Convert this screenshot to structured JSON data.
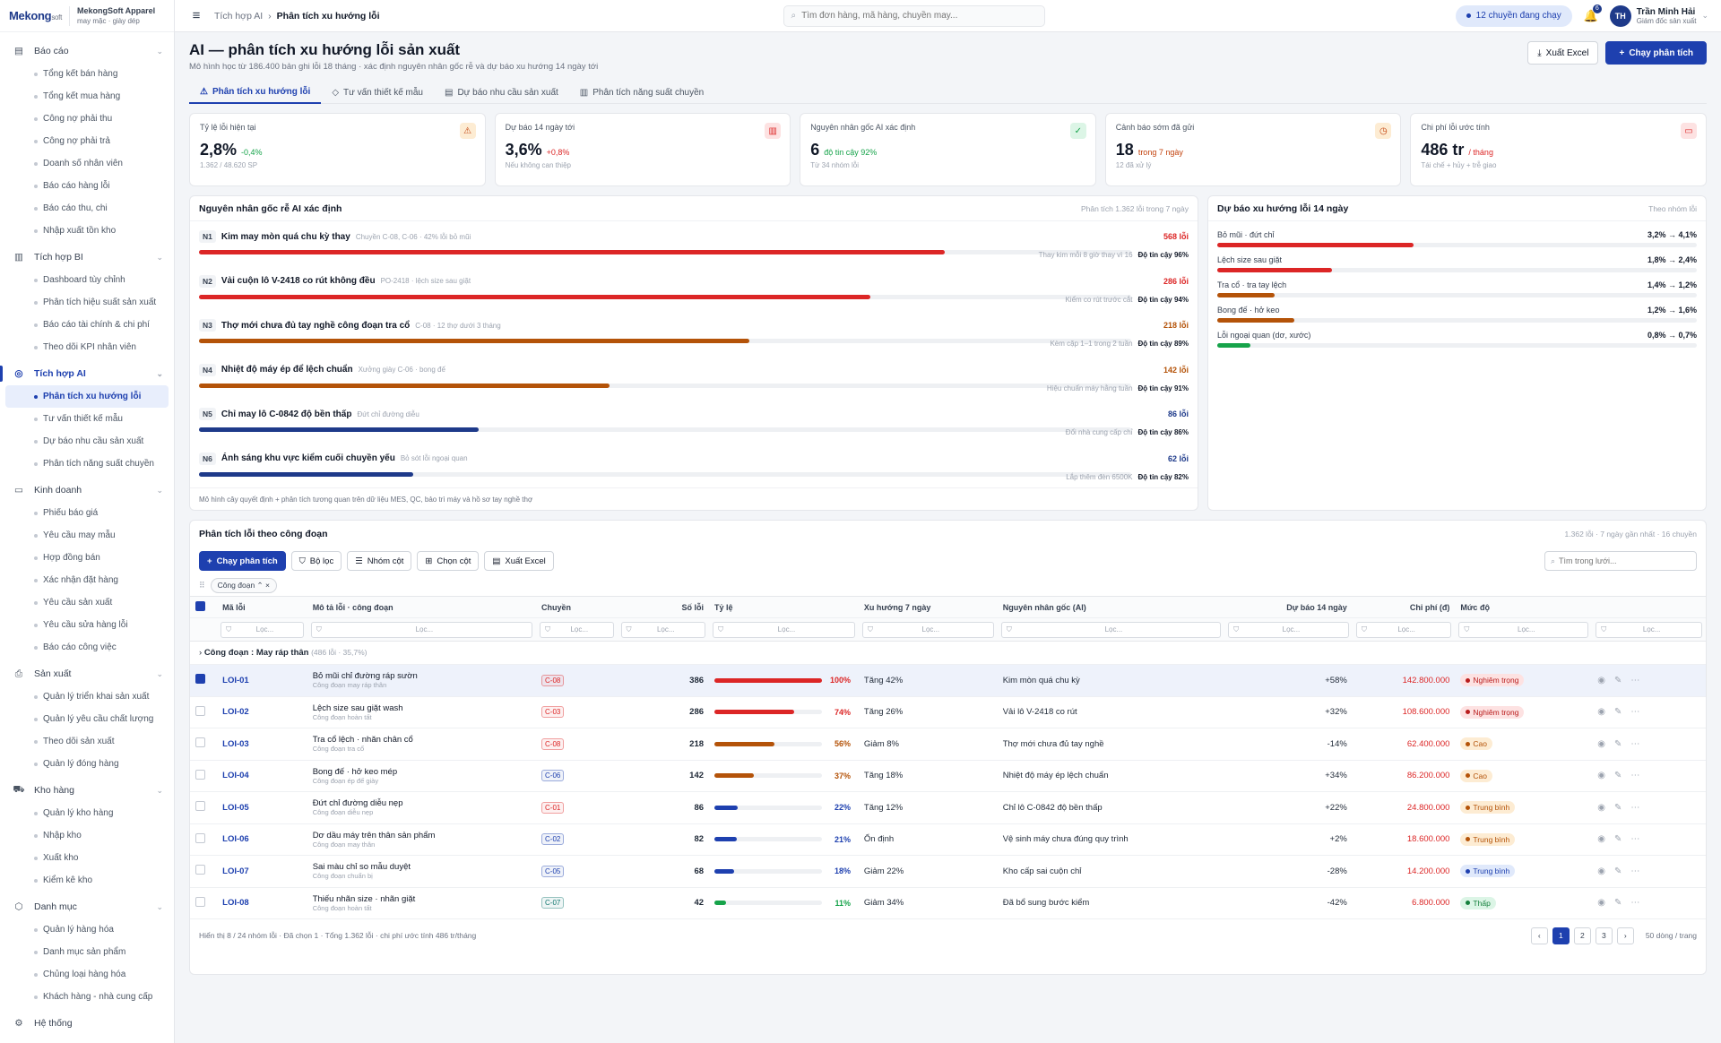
{
  "brand": {
    "logo": "Mekong",
    "logo_small": "soft",
    "name": "MekongSoft Apparel",
    "sub": "may mặc · giày dép"
  },
  "sidebar": [
    {
      "label": "Báo cáo",
      "icon": "report-icon",
      "items": [
        "Tổng kết bán hàng",
        "Tổng kết mua hàng",
        "Công nợ phải thu",
        "Công nợ phải trả",
        "Doanh số nhân viên",
        "Báo cáo hàng lỗi",
        "Báo cáo thu, chi",
        "Nhập xuất tồn kho"
      ]
    },
    {
      "label": "Tích hợp BI",
      "icon": "bi-chart-icon",
      "items": [
        "Dashboard tùy chỉnh",
        "Phân tích hiệu suất sản xuất",
        "Báo cáo tài chính & chi phí",
        "Theo dõi KPI nhân viên"
      ]
    },
    {
      "label": "Tích hợp AI",
      "icon": "ai-icon",
      "active": true,
      "items": [
        "Phân tích xu hướng lỗi",
        "Tư vấn thiết kế mẫu",
        "Dự báo nhu cầu sản xuất",
        "Phân tích năng suất chuyền"
      ],
      "active_item": 0
    },
    {
      "label": "Kinh doanh",
      "icon": "business-icon",
      "items": [
        "Phiếu báo giá",
        "Yêu cầu may mẫu",
        "Hợp đồng bán",
        "Xác nhận đặt hàng",
        "Yêu cầu sản xuất",
        "Yêu cầu sửa hàng lỗi",
        "Báo cáo công việc"
      ]
    },
    {
      "label": "Sản xuất",
      "icon": "production-icon",
      "items": [
        "Quản lý triển khai sản xuất",
        "Quản lý yêu cầu chất lượng",
        "Theo dõi sản xuất",
        "Quản lý đóng hàng"
      ]
    },
    {
      "label": "Kho hàng",
      "icon": "warehouse-icon",
      "items": [
        "Quản lý kho hàng",
        "Nhập kho",
        "Xuất kho",
        "Kiểm kê kho"
      ]
    },
    {
      "label": "Danh mục",
      "icon": "catalog-icon",
      "items": [
        "Quản lý hàng hóa",
        "Danh mục sản phẩm",
        "Chủng loại hàng hóa",
        "Khách hàng - nhà cung cấp"
      ]
    },
    {
      "label": "Hệ thống",
      "icon": "settings-icon",
      "items": []
    }
  ],
  "topbar": {
    "crumb1": "Tích hợp AI",
    "crumb2": "Phân tích xu hướng lỗi",
    "search_placeholder": "Tìm đơn hàng, mã hàng, chuyền may...",
    "running": "12 chuyền đang chạy",
    "notif": "6",
    "user_initials": "TH",
    "user_name": "Trần Minh Hải",
    "user_role": "Giám đốc sản xuất"
  },
  "page": {
    "title": "AI — phân tích xu hướng lỗi sản xuất",
    "subtitle": "Mô hình học từ 186.400 bản ghi lỗi 18 tháng · xác định nguyên nhân gốc rễ và dự báo xu hướng 14 ngày tới",
    "export": "Xuất Excel",
    "run": "Chạy phân tích"
  },
  "tabs": [
    "Phân tích xu hướng lỗi",
    "Tư vấn thiết kế mẫu",
    "Dự báo nhu cầu sản xuất",
    "Phân tích năng suất chuyền"
  ],
  "kpis": [
    {
      "label": "Tỷ lệ lỗi hiện tại",
      "value": "2,8%",
      "delta": "-0,4%",
      "delta_color": "#16a34a",
      "note": "1.362 / 48.620 SP",
      "icon": "warning-icon",
      "ic_bg": "#fdecd3",
      "ic_fg": "#c2410c"
    },
    {
      "label": "Dự báo 14 ngày tới",
      "value": "3,6%",
      "delta": "+0,8%",
      "delta_color": "#dc2626",
      "note": "Nếu không can thiệp",
      "icon": "bar-chart-icon",
      "ic_bg": "#fde2e2",
      "ic_fg": "#dc2626"
    },
    {
      "label": "Nguyên nhân gốc AI xác định",
      "value": "6",
      "delta": "độ tin cậy 92%",
      "delta_color": "#16a34a",
      "note": "Từ 34 nhóm lỗi",
      "icon": "check-circle-icon",
      "ic_bg": "#dcf5e6",
      "ic_fg": "#16a34a"
    },
    {
      "label": "Cảnh báo sớm đã gửi",
      "value": "18",
      "delta": "trong 7 ngày",
      "delta_color": "#c2410c",
      "note": "12 đã xử lý",
      "icon": "clock-icon",
      "ic_bg": "#fdecd3",
      "ic_fg": "#c2410c"
    },
    {
      "label": "Chi phí lỗi ước tính",
      "value": "486 tr",
      "delta": "/ tháng",
      "delta_color": "#dc2626",
      "note": "Tái chế + hủy + trễ giao",
      "icon": "money-icon",
      "ic_bg": "#fde2e2",
      "ic_fg": "#dc2626"
    }
  ],
  "causes": {
    "title": "Nguyên nhân gốc rễ AI xác định",
    "meta": "Phân tích 1.362 lỗi trong 7 ngày",
    "footer": "Mô hình cây quyết định + phân tích tương quan trên dữ liệu MES, QC, bảo trì máy và hồ sơ tay nghề thợ",
    "conf_label": "Độ tin cậy",
    "items": [
      {
        "id": "N1",
        "name": "Kim may mòn quá chu kỳ thay",
        "desc": "Chuyền C-08, C-06 · 42% lỗi bỏ mũi",
        "count": "568 lỗi",
        "pct": 0.8,
        "color": "#dc2626",
        "action": "Thay kim mỗi 8 giờ thay vì 16",
        "conf": "96%"
      },
      {
        "id": "N2",
        "name": "Vải cuộn lô V-2418 co rút không đều",
        "desc": "PO-2418 · lệch size sau giặt",
        "count": "286 lỗi",
        "pct": 0.72,
        "color": "#dc2626",
        "action": "Kiểm co rút trước cắt",
        "conf": "94%"
      },
      {
        "id": "N3",
        "name": "Thợ mới chưa đủ tay nghề công đoạn tra cổ",
        "desc": "C-08 · 12 thợ dưới 3 tháng",
        "count": "218 lỗi",
        "pct": 0.59,
        "color": "#b45309",
        "action": "Kèm cặp 1–1 trong 2 tuần",
        "conf": "89%"
      },
      {
        "id": "N4",
        "name": "Nhiệt độ máy ép để lệch chuẩn",
        "desc": "Xưởng giày C-06 · bong đế",
        "count": "142 lỗi",
        "pct": 0.44,
        "color": "#b45309",
        "action": "Hiệu chuẩn máy hằng tuần",
        "conf": "91%"
      },
      {
        "id": "N5",
        "name": "Chỉ may lô C-0842 độ bền thấp",
        "desc": "Đứt chỉ đường diễu",
        "count": "86 lỗi",
        "pct": 0.3,
        "color": "#1e3a8a",
        "action": "Đổi nhà cung cấp chỉ",
        "conf": "86%"
      },
      {
        "id": "N6",
        "name": "Ánh sáng khu vực kiểm cuối chuyền yếu",
        "desc": "Bỏ sót lỗi ngoại quan",
        "count": "62 lỗi",
        "pct": 0.23,
        "color": "#1e3a8a",
        "action": "Lắp thêm đèn 6500K",
        "conf": "82%"
      }
    ]
  },
  "forecast": {
    "title": "Dự báo xu hướng lỗi 14 ngày",
    "meta": "Theo nhóm lỗi",
    "items": [
      {
        "name": "Bỏ mũi · đứt chỉ",
        "range": "3,2% → 4,1%",
        "pct": 0.41,
        "color": "#dc2626"
      },
      {
        "name": "Lệch size sau giặt",
        "range": "1,8% → 2,4%",
        "pct": 0.24,
        "color": "#dc2626"
      },
      {
        "name": "Tra cổ · tra tay lệch",
        "range": "1,4% → 1,2%",
        "pct": 0.12,
        "color": "#b45309"
      },
      {
        "name": "Bong đế · hở keo",
        "range": "1,2% → 1,6%",
        "pct": 0.16,
        "color": "#b45309"
      },
      {
        "name": "Lỗi ngoại quan (dơ, xước)",
        "range": "0,8% → 0,7%",
        "pct": 0.07,
        "color": "#16a34a"
      }
    ]
  },
  "table": {
    "title": "Phân tích lỗi theo công đoạn",
    "meta": "1.362 lỗi · 7 ngày gần nhất · 16 chuyền",
    "tools": [
      "Chạy phân tích",
      "Bộ lọc",
      "Nhóm cột",
      "Chọn cột",
      "Xuất Excel"
    ],
    "search_placeholder": "Tìm trong lưới...",
    "group_chip": "Công đoạn",
    "filter_placeholder": "Lọc...",
    "columns": [
      "Mã lỗi",
      "Mô tả lỗi · công đoạn",
      "Chuyền",
      "Số lỗi",
      "Tỷ lệ",
      "Xu hướng 7 ngày",
      "Nguyên nhân gốc (AI)",
      "Dự báo 14 ngày",
      "Chi phí (đ)",
      "Mức độ"
    ],
    "group_label": "Công đoạn : May ráp thân",
    "group_meta": "(486 lỗi · 35,7%)",
    "rows": [
      {
        "code": "LOI-01",
        "desc": "Bỏ mũi chỉ đường ráp sườn",
        "stage": "Công đoạn may ráp thân",
        "line": "C-08",
        "lc": "#dc2626",
        "count": "386",
        "pct": 1.0,
        "pl": "100%",
        "pc": "#dc2626",
        "trend": "Tăng 42%",
        "cause": "Kim mòn quá chu kỳ",
        "fc": "+58%",
        "cost": "142.800.000",
        "costc": "#dc2626",
        "sev": "Nghiêm trọng",
        "sbg": "#fde2e2",
        "sfg": "#b91c1c",
        "sel": true
      },
      {
        "code": "LOI-02",
        "desc": "Lệch size sau giặt wash",
        "stage": "Công đoạn hoàn tất",
        "line": "C-03",
        "lc": "#dc2626",
        "count": "286",
        "pct": 0.74,
        "pl": "74%",
        "pc": "#dc2626",
        "trend": "Tăng 26%",
        "cause": "Vải lô V-2418 co rút",
        "fc": "+32%",
        "cost": "108.600.000",
        "costc": "#dc2626",
        "sev": "Nghiêm trọng",
        "sbg": "#fde2e2",
        "sfg": "#b91c1c",
        "sel": false
      },
      {
        "code": "LOI-03",
        "desc": "Tra cổ lệch · nhăn chân cổ",
        "stage": "Công đoạn tra cổ",
        "line": "C-08",
        "lc": "#dc2626",
        "count": "218",
        "pct": 0.56,
        "pl": "56%",
        "pc": "#b45309",
        "trend": "Giảm 8%",
        "cause": "Thợ mới chưa đủ tay nghề",
        "fc": "-14%",
        "cost": "62.400.000",
        "costc": "#dc2626",
        "sev": "Cao",
        "sbg": "#fdecd3",
        "sfg": "#b45309",
        "sel": false
      },
      {
        "code": "LOI-04",
        "desc": "Bong đế · hở keo mép",
        "stage": "Công đoạn ép đế giày",
        "line": "C-06",
        "lc": "#1e40af",
        "count": "142",
        "pct": 0.37,
        "pl": "37%",
        "pc": "#b45309",
        "trend": "Tăng 18%",
        "cause": "Nhiệt độ máy ép lệch chuẩn",
        "fc": "+34%",
        "cost": "86.200.000",
        "costc": "#dc2626",
        "sev": "Cao",
        "sbg": "#fdecd3",
        "sfg": "#b45309",
        "sel": false
      },
      {
        "code": "LOI-05",
        "desc": "Đứt chỉ đường diễu nẹp",
        "stage": "Công đoạn diễu nẹp",
        "line": "C-01",
        "lc": "#dc2626",
        "count": "86",
        "pct": 0.22,
        "pl": "22%",
        "pc": "#1e40af",
        "trend": "Tăng 12%",
        "cause": "Chỉ lô C-0842 độ bền thấp",
        "fc": "+22%",
        "cost": "24.800.000",
        "costc": "#dc2626",
        "sev": "Trung bình",
        "sbg": "#fdecd3",
        "sfg": "#b45309",
        "sel": false
      },
      {
        "code": "LOI-06",
        "desc": "Dơ dầu máy trên thân sản phẩm",
        "stage": "Công đoạn may thân",
        "line": "C-02",
        "lc": "#1e40af",
        "count": "82",
        "pct": 0.21,
        "pl": "21%",
        "pc": "#1e40af",
        "trend": "Ổn định",
        "cause": "Vệ sinh máy chưa đúng quy trình",
        "fc": "+2%",
        "cost": "18.600.000",
        "costc": "#dc2626",
        "sev": "Trung bình",
        "sbg": "#fdecd3",
        "sfg": "#b45309",
        "sel": false
      },
      {
        "code": "LOI-07",
        "desc": "Sai màu chỉ so mẫu duyệt",
        "stage": "Công đoạn chuẩn bị",
        "line": "C-05",
        "lc": "#1e40af",
        "count": "68",
        "pct": 0.18,
        "pl": "18%",
        "pc": "#1e40af",
        "trend": "Giảm 22%",
        "cause": "Kho cấp sai cuộn chỉ",
        "fc": "-28%",
        "cost": "14.200.000",
        "costc": "#dc2626",
        "sev": "Trung bình",
        "sbg": "#e0e9fb",
        "sfg": "#1e40af",
        "sel": false
      },
      {
        "code": "LOI-08",
        "desc": "Thiếu nhãn size · nhãn giặt",
        "stage": "Công đoạn hoàn tất",
        "line": "C-07",
        "lc": "#0f766e",
        "count": "42",
        "pct": 0.11,
        "pl": "11%",
        "pc": "#16a34a",
        "trend": "Giảm 34%",
        "cause": "Đã bổ sung bước kiểm",
        "fc": "-42%",
        "cost": "6.800.000",
        "costc": "#dc2626",
        "sev": "Thấp",
        "sbg": "#dcf5e6",
        "sfg": "#15803d",
        "sel": false
      }
    ],
    "footer": "Hiển thị 8 / 24 nhóm lỗi · Đã chọn 1 · Tổng 1.362 lỗi · chi phí ước tính 486 tr/tháng",
    "pages": [
      "1",
      "2",
      "3"
    ],
    "page_size": "50 dòng / trang"
  }
}
